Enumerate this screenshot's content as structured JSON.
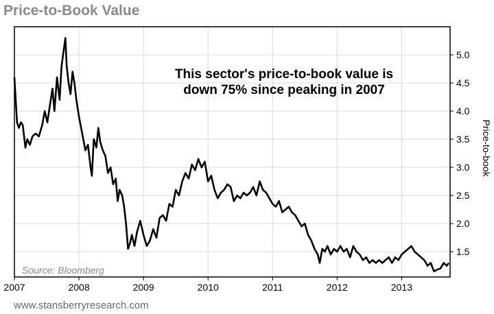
{
  "chart_data": {
    "type": "line",
    "title": "Price-to-Book Value",
    "ylabel": "Price-to-book",
    "xlabel": "",
    "x_tick_labels": [
      "2007",
      "2008",
      "2009",
      "2010",
      "2011",
      "2012",
      "2013"
    ],
    "y_tick_labels": [
      "1.5",
      "2.0",
      "2.5",
      "3.0",
      "3.5",
      "4.0",
      "4.5",
      "5.0"
    ],
    "y_ticks": [
      1.5,
      2.0,
      2.5,
      3.0,
      3.5,
      4.0,
      4.5,
      5.0
    ],
    "xlim": [
      2007.0,
      2013.75
    ],
    "ylim": [
      1.05,
      5.5
    ],
    "grid": true,
    "y_axis_side": "right",
    "annotation": {
      "line1": "This sector's price-to-book value is",
      "line2": "down 75% since peaking in 2007"
    },
    "source": "Source: Bloomberg",
    "series": [
      {
        "name": "Price-to-book",
        "color": "#000000",
        "points": [
          [
            2007.0,
            4.6
          ],
          [
            2007.02,
            4.2
          ],
          [
            2007.04,
            3.8
          ],
          [
            2007.07,
            3.7
          ],
          [
            2007.1,
            3.8
          ],
          [
            2007.13,
            3.75
          ],
          [
            2007.17,
            3.35
          ],
          [
            2007.2,
            3.5
          ],
          [
            2007.24,
            3.4
          ],
          [
            2007.28,
            3.55
          ],
          [
            2007.33,
            3.6
          ],
          [
            2007.38,
            3.55
          ],
          [
            2007.43,
            3.75
          ],
          [
            2007.47,
            4.0
          ],
          [
            2007.51,
            3.8
          ],
          [
            2007.55,
            4.1
          ],
          [
            2007.59,
            4.4
          ],
          [
            2007.62,
            4.0
          ],
          [
            2007.66,
            4.6
          ],
          [
            2007.7,
            4.2
          ],
          [
            2007.73,
            4.8
          ],
          [
            2007.76,
            5.05
          ],
          [
            2007.79,
            5.3
          ],
          [
            2007.81,
            4.8
          ],
          [
            2007.84,
            4.5
          ],
          [
            2007.87,
            4.3
          ],
          [
            2007.9,
            4.7
          ],
          [
            2007.93,
            4.5
          ],
          [
            2007.96,
            4.2
          ],
          [
            2008.0,
            3.9
          ],
          [
            2008.05,
            3.6
          ],
          [
            2008.1,
            3.3
          ],
          [
            2008.14,
            3.4
          ],
          [
            2008.18,
            3.0
          ],
          [
            2008.2,
            2.85
          ],
          [
            2008.23,
            3.5
          ],
          [
            2008.27,
            3.35
          ],
          [
            2008.3,
            3.7
          ],
          [
            2008.33,
            3.45
          ],
          [
            2008.37,
            3.3
          ],
          [
            2008.41,
            3.2
          ],
          [
            2008.45,
            2.9
          ],
          [
            2008.49,
            3.0
          ],
          [
            2008.53,
            2.7
          ],
          [
            2008.57,
            2.8
          ],
          [
            2008.6,
            2.4
          ],
          [
            2008.63,
            2.6
          ],
          [
            2008.67,
            2.5
          ],
          [
            2008.7,
            2.3
          ],
          [
            2008.73,
            2.0
          ],
          [
            2008.76,
            1.55
          ],
          [
            2008.79,
            1.65
          ],
          [
            2008.82,
            1.8
          ],
          [
            2008.86,
            1.6
          ],
          [
            2008.9,
            1.85
          ],
          [
            2008.95,
            2.05
          ],
          [
            2009.0,
            1.8
          ],
          [
            2009.05,
            1.6
          ],
          [
            2009.1,
            1.7
          ],
          [
            2009.15,
            1.9
          ],
          [
            2009.2,
            1.75
          ],
          [
            2009.25,
            2.1
          ],
          [
            2009.3,
            2.15
          ],
          [
            2009.35,
            2.05
          ],
          [
            2009.4,
            2.35
          ],
          [
            2009.45,
            2.3
          ],
          [
            2009.5,
            2.6
          ],
          [
            2009.55,
            2.5
          ],
          [
            2009.6,
            2.75
          ],
          [
            2009.65,
            2.9
          ],
          [
            2009.7,
            2.8
          ],
          [
            2009.75,
            3.05
          ],
          [
            2009.8,
            2.95
          ],
          [
            2009.85,
            3.15
          ],
          [
            2009.9,
            3.0
          ],
          [
            2009.95,
            3.1
          ],
          [
            2010.0,
            2.75
          ],
          [
            2010.05,
            2.85
          ],
          [
            2010.1,
            2.6
          ],
          [
            2010.15,
            2.45
          ],
          [
            2010.2,
            2.55
          ],
          [
            2010.25,
            2.6
          ],
          [
            2010.3,
            2.7
          ],
          [
            2010.35,
            2.65
          ],
          [
            2010.4,
            2.4
          ],
          [
            2010.45,
            2.5
          ],
          [
            2010.5,
            2.45
          ],
          [
            2010.55,
            2.55
          ],
          [
            2010.6,
            2.5
          ],
          [
            2010.65,
            2.55
          ],
          [
            2010.7,
            2.65
          ],
          [
            2010.75,
            2.5
          ],
          [
            2010.8,
            2.75
          ],
          [
            2010.85,
            2.6
          ],
          [
            2010.9,
            2.55
          ],
          [
            2010.95,
            2.45
          ],
          [
            2011.0,
            2.35
          ],
          [
            2011.05,
            2.3
          ],
          [
            2011.1,
            2.4
          ],
          [
            2011.15,
            2.2
          ],
          [
            2011.2,
            2.25
          ],
          [
            2011.25,
            2.3
          ],
          [
            2011.3,
            2.2
          ],
          [
            2011.35,
            2.15
          ],
          [
            2011.4,
            2.05
          ],
          [
            2011.45,
            1.95
          ],
          [
            2011.5,
            2.0
          ],
          [
            2011.55,
            1.8
          ],
          [
            2011.6,
            1.7
          ],
          [
            2011.65,
            1.55
          ],
          [
            2011.7,
            1.45
          ],
          [
            2011.73,
            1.3
          ],
          [
            2011.77,
            1.55
          ],
          [
            2011.81,
            1.5
          ],
          [
            2011.85,
            1.6
          ],
          [
            2011.9,
            1.45
          ],
          [
            2011.95,
            1.55
          ],
          [
            2012.0,
            1.5
          ],
          [
            2012.05,
            1.6
          ],
          [
            2012.1,
            1.5
          ],
          [
            2012.15,
            1.55
          ],
          [
            2012.2,
            1.4
          ],
          [
            2012.25,
            1.6
          ],
          [
            2012.3,
            1.5
          ],
          [
            2012.35,
            1.45
          ],
          [
            2012.4,
            1.35
          ],
          [
            2012.45,
            1.4
          ],
          [
            2012.5,
            1.3
          ],
          [
            2012.55,
            1.35
          ],
          [
            2012.6,
            1.3
          ],
          [
            2012.65,
            1.35
          ],
          [
            2012.7,
            1.3
          ],
          [
            2012.75,
            1.35
          ],
          [
            2012.8,
            1.4
          ],
          [
            2012.85,
            1.3
          ],
          [
            2012.9,
            1.4
          ],
          [
            2012.95,
            1.35
          ],
          [
            2013.0,
            1.45
          ],
          [
            2013.05,
            1.5
          ],
          [
            2013.1,
            1.55
          ],
          [
            2013.15,
            1.6
          ],
          [
            2013.2,
            1.5
          ],
          [
            2013.25,
            1.45
          ],
          [
            2013.3,
            1.4
          ],
          [
            2013.35,
            1.35
          ],
          [
            2013.4,
            1.25
          ],
          [
            2013.45,
            1.3
          ],
          [
            2013.5,
            1.15
          ],
          [
            2013.55,
            1.18
          ],
          [
            2013.6,
            1.2
          ],
          [
            2013.65,
            1.3
          ],
          [
            2013.7,
            1.25
          ],
          [
            2013.73,
            1.3
          ]
        ]
      }
    ]
  },
  "footer": "www.stansberryresearch.com"
}
